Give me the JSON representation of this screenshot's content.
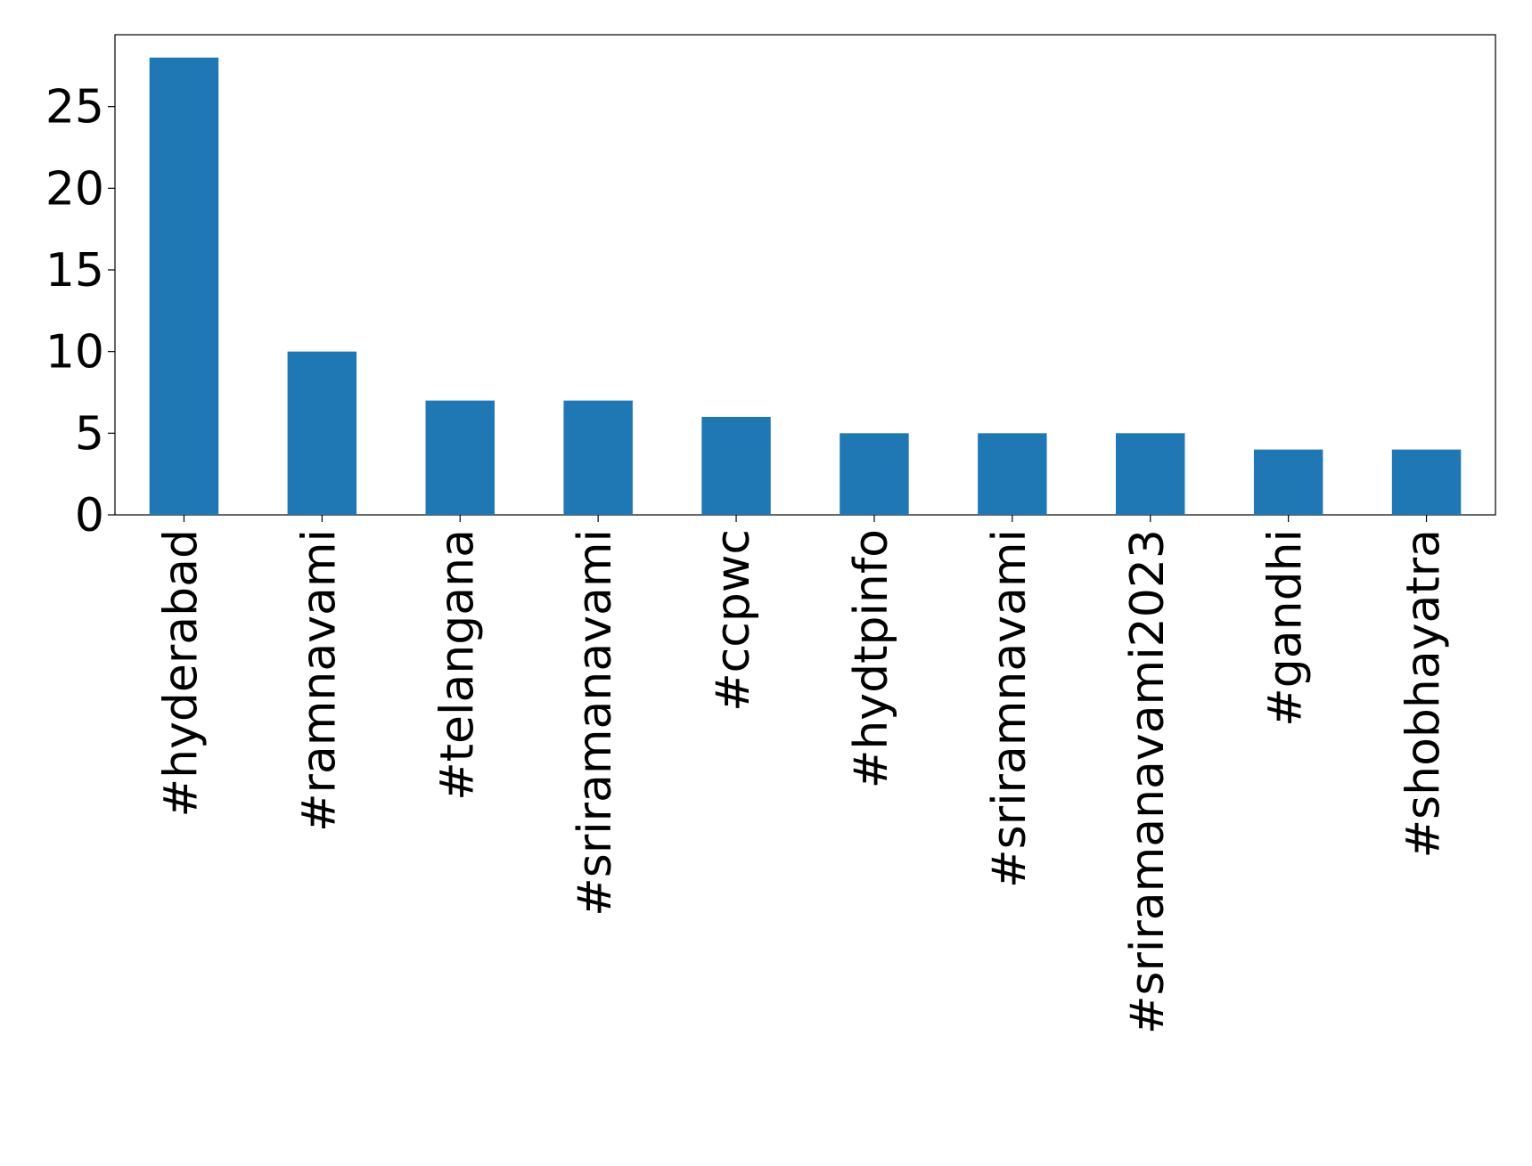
{
  "chart_data": {
    "type": "bar",
    "categories": [
      "#hyderabad",
      "#ramnavami",
      "#telangana",
      "#sriramanavami",
      "#ccpwc",
      "#hydtpinfo",
      "#sriramnavami",
      "#sriramanavami2023",
      "#gandhi",
      "#shobhayatra"
    ],
    "values": [
      28,
      10,
      7,
      7,
      6,
      5,
      5,
      5,
      4,
      4
    ],
    "color": "#1f77b4",
    "ylim": [
      0,
      29.4
    ],
    "yticks": [
      0,
      5,
      10,
      15,
      20,
      25
    ],
    "grid": false
  }
}
